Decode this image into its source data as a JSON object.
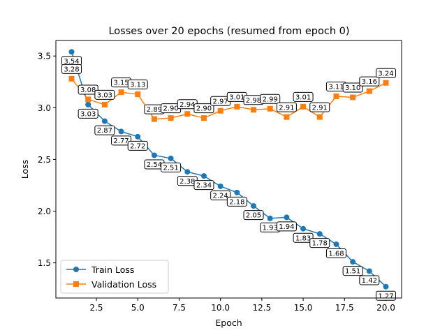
{
  "chart_data": {
    "type": "line",
    "title": "Losses over 20 epochs (resumed from epoch 0)",
    "xlabel": "Epoch",
    "ylabel": "Loss",
    "xlim": [
      0.05,
      20.95
    ],
    "ylim": [
      1.16,
      3.65
    ],
    "xticks": [
      2.5,
      5.0,
      7.5,
      10.0,
      12.5,
      15.0,
      17.5,
      20.0
    ],
    "xtick_labels": [
      "2.5",
      "5.0",
      "7.5",
      "10.0",
      "12.5",
      "15.0",
      "17.5",
      "20.0"
    ],
    "yticks": [
      1.5,
      2.0,
      2.5,
      3.0,
      3.5
    ],
    "ytick_labels": [
      "1.5",
      "2.0",
      "2.5",
      "3.0",
      "3.5"
    ],
    "grid": false,
    "legend_position": "lower-left",
    "x": [
      1,
      2,
      3,
      4,
      5,
      6,
      7,
      8,
      9,
      10,
      11,
      12,
      13,
      14,
      15,
      16,
      17,
      18,
      19,
      20
    ],
    "series": [
      {
        "name": "Train Loss",
        "color": "#1f77b4",
        "marker": "circle",
        "values": [
          3.54,
          3.03,
          2.87,
          2.77,
          2.72,
          2.54,
          2.51,
          2.38,
          2.34,
          2.24,
          2.18,
          2.05,
          1.93,
          1.94,
          1.83,
          1.78,
          1.68,
          1.51,
          1.42,
          1.27
        ],
        "labels": [
          "3.54",
          "3.03",
          "2.87",
          "2.77",
          "2.72",
          "2.54",
          "2.51",
          "2.38",
          "2.34",
          "2.24",
          "2.18",
          "2.05",
          "1.93",
          "1.94",
          "1.83",
          "1.78",
          "1.68",
          "1.51",
          "1.42",
          "1.27"
        ]
      },
      {
        "name": "Validation Loss",
        "color": "#ff7f0e",
        "marker": "square",
        "values": [
          3.28,
          3.08,
          3.03,
          3.15,
          3.13,
          2.89,
          2.9,
          2.94,
          2.9,
          2.97,
          3.01,
          2.98,
          2.99,
          2.91,
          3.01,
          2.91,
          3.11,
          3.1,
          3.16,
          3.24
        ],
        "labels": [
          "3.28",
          "3.08",
          "3.03",
          "3.15",
          "3.13",
          "2.89",
          "2.90",
          "2.94",
          "2.90",
          "2.97",
          "3.01",
          "2.98",
          "2.99",
          "2.91",
          "3.01",
          "2.91",
          "3.11",
          "3.10",
          "3.16",
          "3.24"
        ]
      }
    ]
  }
}
